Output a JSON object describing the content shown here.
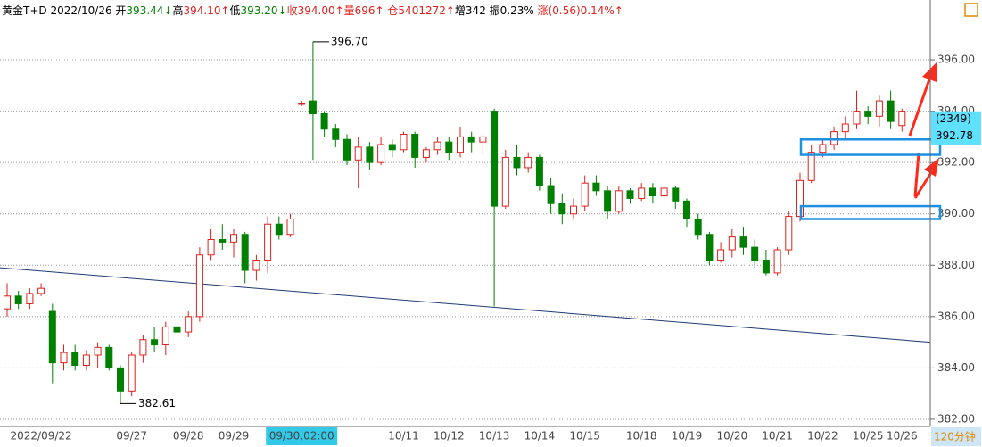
{
  "chart_data": {
    "type": "candlestick",
    "header": [
      {
        "text": "黄金T+D 2022/10/26 开",
        "color": "#000000"
      },
      {
        "text": "393.44↓",
        "color": "#008000"
      },
      {
        "text": "高",
        "color": "#000000"
      },
      {
        "text": "394.10↑",
        "color": "#e0201a"
      },
      {
        "text": "低",
        "color": "#000000"
      },
      {
        "text": "393.20↓",
        "color": "#008000"
      },
      {
        "text": "收394.00↑",
        "color": "#e0201a"
      },
      {
        "text": "量696↑ ",
        "color": "#e0201a"
      },
      {
        "text": "仓5401272↑",
        "color": "#e0201a"
      },
      {
        "text": "增342 振0.23% ",
        "color": "#000000"
      },
      {
        "text": "涨(0.56)0.14%↑",
        "color": "#e0201a"
      }
    ],
    "categories": [
      null,
      null,
      null,
      "2022/09/22",
      null,
      null,
      null,
      null,
      null,
      null,
      null,
      "09/27",
      null,
      null,
      null,
      null,
      "09/28",
      null,
      null,
      null,
      "09/29",
      null,
      null,
      null,
      null,
      null,
      "09/30,02:00",
      null,
      null,
      null,
      null,
      null,
      null,
      null,
      null,
      "10/11",
      null,
      null,
      null,
      "10/12",
      null,
      null,
      null,
      "10/13",
      null,
      null,
      null,
      "10/14",
      null,
      null,
      null,
      "10/15",
      null,
      null,
      null,
      null,
      "10/18",
      null,
      null,
      null,
      "10/19",
      null,
      null,
      null,
      "10/20",
      null,
      null,
      null,
      "10/21",
      null,
      null,
      null,
      "10/22",
      null,
      null,
      null,
      "10/25",
      null,
      null,
      "10/26"
    ],
    "cursor_category": 26,
    "ohlc": [
      [
        386.3,
        387.3,
        386.0,
        386.8
      ],
      [
        386.8,
        387.0,
        386.3,
        386.5
      ],
      [
        386.5,
        387.1,
        386.3,
        386.9
      ],
      [
        386.9,
        387.3,
        386.8,
        387.1
      ],
      [
        386.2,
        386.5,
        383.4,
        384.2
      ],
      [
        384.2,
        384.9,
        383.9,
        384.6
      ],
      [
        384.6,
        384.9,
        383.9,
        384.1
      ],
      [
        384.1,
        384.7,
        383.9,
        384.5
      ],
      [
        384.5,
        385.0,
        384.0,
        384.8
      ],
      [
        384.8,
        384.9,
        383.9,
        384.0
      ],
      [
        384.0,
        384.1,
        382.61,
        383.1
      ],
      [
        383.1,
        384.6,
        382.9,
        384.5
      ],
      [
        384.5,
        385.3,
        384.2,
        385.1
      ],
      [
        385.1,
        385.6,
        384.6,
        384.9
      ],
      [
        384.9,
        385.8,
        384.5,
        385.6
      ],
      [
        385.6,
        386.0,
        385.2,
        385.4
      ],
      [
        385.4,
        386.2,
        385.2,
        386.0
      ],
      [
        386.0,
        388.7,
        385.8,
        388.4
      ],
      [
        388.4,
        389.4,
        388.2,
        389.0
      ],
      [
        389.0,
        389.6,
        388.6,
        388.9
      ],
      [
        388.9,
        389.4,
        388.3,
        389.2
      ],
      [
        389.2,
        389.3,
        387.3,
        387.8
      ],
      [
        387.8,
        388.4,
        387.4,
        388.2
      ],
      [
        388.2,
        389.9,
        387.7,
        389.6
      ],
      [
        389.6,
        389.9,
        389.0,
        389.2
      ],
      [
        389.2,
        390.0,
        389.1,
        389.8
      ],
      [
        394.3,
        394.4,
        394.2,
        394.3
      ],
      [
        394.4,
        396.7,
        392.1,
        393.9
      ],
      [
        393.9,
        394.0,
        393.0,
        393.3
      ],
      [
        393.3,
        393.5,
        392.6,
        392.9
      ],
      [
        392.9,
        393.1,
        391.9,
        392.1
      ],
      [
        392.1,
        393.0,
        391.0,
        392.6
      ],
      [
        392.6,
        392.8,
        391.7,
        392.0
      ],
      [
        392.0,
        393.0,
        391.9,
        392.7
      ],
      [
        392.7,
        392.9,
        392.2,
        392.5
      ],
      [
        392.5,
        393.2,
        392.4,
        393.1
      ],
      [
        393.1,
        393.2,
        391.8,
        392.2
      ],
      [
        392.2,
        392.6,
        392.0,
        392.5
      ],
      [
        392.5,
        393.0,
        392.3,
        392.8
      ],
      [
        392.8,
        393.0,
        392.1,
        392.4
      ],
      [
        392.4,
        393.4,
        392.2,
        393.0
      ],
      [
        393.0,
        393.2,
        392.4,
        392.8
      ],
      [
        392.8,
        393.1,
        392.3,
        393.0
      ],
      [
        394.0,
        394.1,
        386.4,
        390.3
      ],
      [
        390.3,
        392.5,
        390.2,
        392.2
      ],
      [
        392.2,
        392.7,
        391.5,
        391.8
      ],
      [
        391.8,
        392.4,
        391.6,
        392.2
      ],
      [
        392.2,
        392.3,
        390.9,
        391.1
      ],
      [
        391.1,
        391.4,
        390.0,
        390.4
      ],
      [
        390.4,
        390.8,
        389.6,
        390.0
      ],
      [
        390.0,
        390.6,
        389.8,
        390.3
      ],
      [
        390.3,
        391.5,
        390.1,
        391.2
      ],
      [
        391.2,
        391.5,
        390.7,
        390.9
      ],
      [
        390.9,
        391.1,
        389.8,
        390.1
      ],
      [
        390.1,
        391.1,
        390.0,
        390.9
      ],
      [
        390.9,
        391.0,
        390.4,
        390.6
      ],
      [
        390.6,
        391.2,
        390.5,
        391.0
      ],
      [
        391.0,
        391.2,
        390.4,
        390.7
      ],
      [
        390.7,
        391.1,
        390.6,
        391.0
      ],
      [
        391.0,
        391.1,
        390.2,
        390.5
      ],
      [
        390.5,
        390.6,
        389.5,
        389.8
      ],
      [
        389.8,
        390.0,
        389.0,
        389.2
      ],
      [
        389.2,
        389.3,
        388.0,
        388.2
      ],
      [
        388.2,
        388.9,
        388.1,
        388.6
      ],
      [
        388.6,
        389.4,
        388.3,
        389.1
      ],
      [
        389.1,
        389.5,
        388.4,
        388.7
      ],
      [
        388.7,
        389.0,
        387.9,
        388.2
      ],
      [
        388.2,
        388.6,
        387.6,
        387.7
      ],
      [
        387.7,
        388.7,
        387.6,
        388.6
      ],
      [
        388.6,
        390.1,
        388.4,
        389.9
      ],
      [
        389.9,
        391.6,
        389.7,
        391.3
      ],
      [
        391.3,
        392.7,
        391.2,
        392.4
      ],
      [
        392.4,
        392.9,
        392.2,
        392.7
      ],
      [
        392.7,
        393.4,
        392.5,
        393.2
      ],
      [
        393.2,
        393.8,
        392.9,
        393.5
      ],
      [
        393.5,
        394.8,
        393.3,
        394.0
      ],
      [
        394.0,
        394.2,
        393.5,
        393.8
      ],
      [
        393.8,
        394.6,
        393.4,
        394.4
      ],
      [
        394.4,
        394.8,
        393.3,
        393.6
      ],
      [
        393.44,
        394.1,
        393.2,
        394.0
      ]
    ],
    "up_color": "#e0201a",
    "down_color": "#008000",
    "ylim": [
      381.72,
      398.33
    ],
    "yticks": [
      {
        "value": 382,
        "label": "382.00"
      },
      {
        "value": 384,
        "label": "384.00"
      },
      {
        "value": 386,
        "label": "386.00"
      },
      {
        "value": 388,
        "label": "388.00"
      },
      {
        "value": 390,
        "label": "390.00"
      },
      {
        "value": 392,
        "label": "392.00"
      },
      {
        "value": 394,
        "label": "394.00"
      },
      {
        "value": 396,
        "label": "396.00"
      }
    ],
    "grid": true,
    "annotations": [
      {
        "value": 396.7,
        "label": "396.70"
      },
      {
        "value": 382.61,
        "label": "382.61"
      }
    ],
    "trend_line": [
      387.9,
      385.0
    ],
    "trend_color": "#1f3b73",
    "zones": [
      [
        392.9,
        392.3
      ],
      [
        390.3,
        389.8
      ]
    ],
    "zone_color": "#1e90e0",
    "last_marker": {
      "count": "(2349)",
      "value": 392.78,
      "label": "392.78"
    },
    "period": "120分钟"
  }
}
